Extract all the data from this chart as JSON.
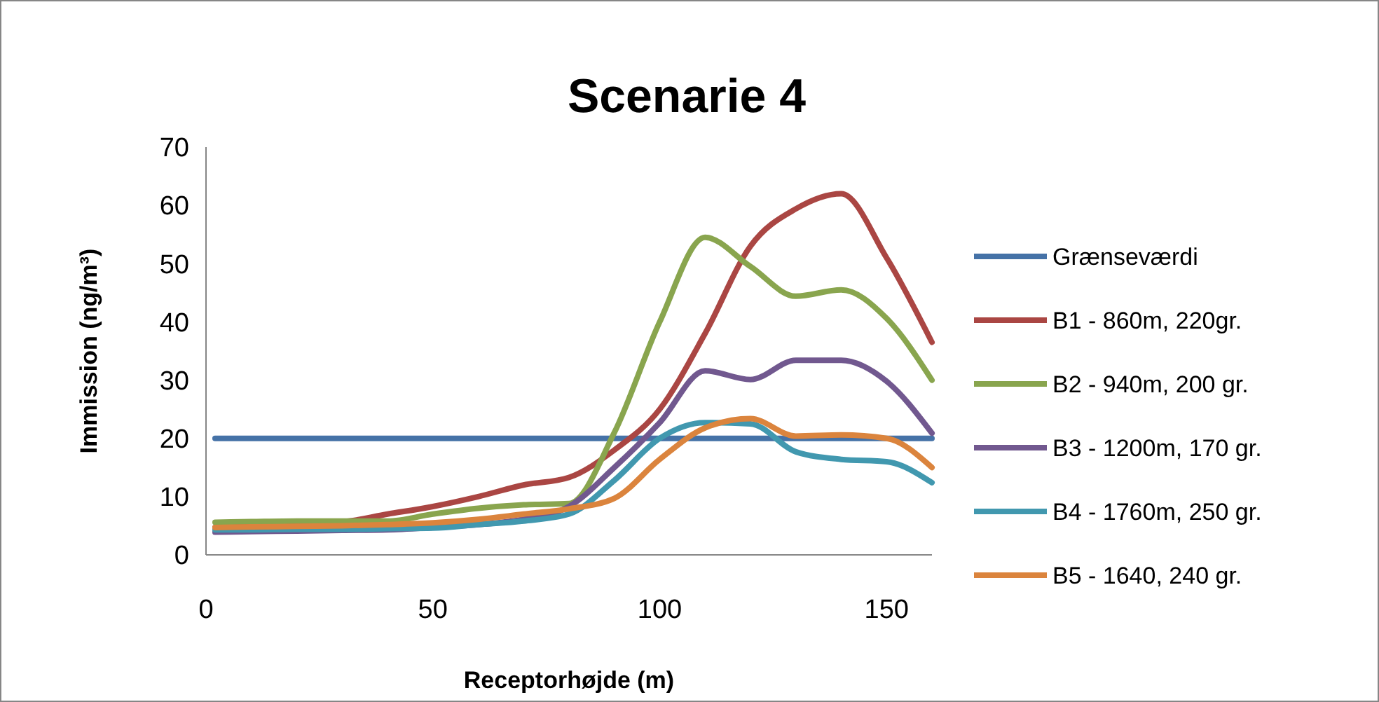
{
  "chart_data": {
    "type": "line",
    "title": "Scenarie 4",
    "xlabel": "Receptorhøjde (m)",
    "ylabel": "Immission (ng/m³)",
    "x": [
      2,
      10,
      20,
      30,
      40,
      50,
      60,
      70,
      80,
      90,
      100,
      110,
      120,
      130,
      140,
      150,
      160
    ],
    "xlim": [
      0,
      160
    ],
    "xticks": [
      0,
      50,
      100,
      150
    ],
    "ylim": [
      0,
      70
    ],
    "yticks": [
      0,
      10,
      20,
      30,
      40,
      50,
      60,
      70
    ],
    "grid": false,
    "legend": "right",
    "marker": "none",
    "line_style": "solid",
    "series": [
      {
        "name": "Grænseværdi",
        "color": "#4572a7",
        "values": [
          20,
          20,
          20,
          20,
          20,
          20,
          20,
          20,
          20,
          20,
          20,
          20,
          20,
          20,
          20,
          20,
          20
        ]
      },
      {
        "name": "B1 - 860m, 220gr.",
        "color": "#aa4643",
        "values": [
          4.7,
          5.2,
          5.5,
          5.7,
          7,
          8.3,
          10,
          12,
          13.3,
          18,
          25,
          38,
          53,
          59.4,
          62,
          51,
          36.5
        ]
      },
      {
        "name": "B2 - 940m, 200 gr.",
        "color": "#89a54e",
        "values": [
          5.6,
          5.7,
          5.8,
          5.8,
          5.8,
          7,
          8,
          8.6,
          8.8,
          21,
          40,
          54.5,
          49.5,
          44.4,
          45.5,
          40.6,
          30
        ]
      },
      {
        "name": "B3 - 1200m, 170 gr.",
        "color": "#71588f",
        "values": [
          3.9,
          4,
          4.1,
          4.2,
          4.3,
          4.7,
          5.2,
          6.1,
          8.3,
          15,
          22.7,
          31.6,
          30.1,
          33.4,
          33.4,
          29.8,
          20.9
        ]
      },
      {
        "name": "B4 - 1760m, 250 gr.",
        "color": "#4198af",
        "values": [
          4.3,
          4.3,
          4.4,
          4.4,
          4.5,
          4.6,
          5.2,
          5.8,
          7,
          12.8,
          20,
          22.7,
          22.5,
          17.7,
          16.4,
          16,
          12.4
        ]
      },
      {
        "name": "B5 - 1640, 240 gr.",
        "color": "#db843d",
        "values": [
          4.7,
          4.8,
          4.9,
          5,
          5.2,
          5.5,
          6.1,
          7,
          7.9,
          9.7,
          16.4,
          21.8,
          23.4,
          20.4,
          20.6,
          20,
          15
        ]
      }
    ]
  }
}
